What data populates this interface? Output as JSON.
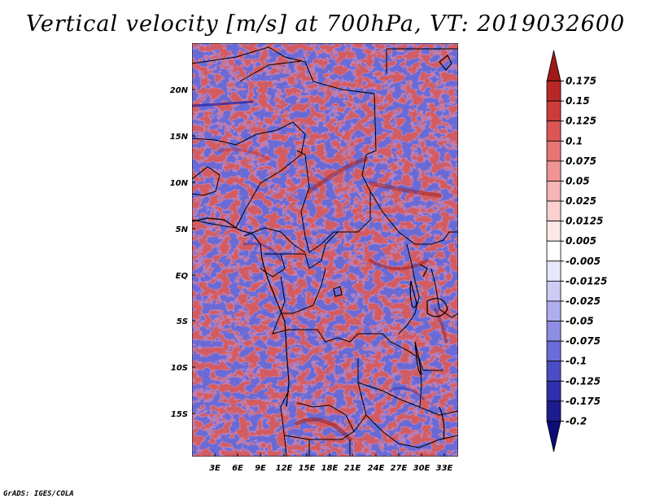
{
  "title": "Vertical velocity [m/s] at 700hPa, VT: 2019032600",
  "footer": "GrADS: IGES/COLA",
  "map": {
    "region": "Central Africa",
    "lat_labels": [
      "20N",
      "15N",
      "10N",
      "5N",
      "EQ",
      "5S",
      "10S",
      "15S"
    ],
    "lon_labels": [
      "3E",
      "6E",
      "9E",
      "12E",
      "15E",
      "18E",
      "21E",
      "24E",
      "27E",
      "30E",
      "33E"
    ]
  },
  "colorbar": {
    "labels": [
      "0.175",
      "0.15",
      "0.125",
      "0.1",
      "0.075",
      "0.05",
      "0.025",
      "0.0125",
      "0.005",
      "-0.005",
      "-0.0125",
      "-0.025",
      "-0.05",
      "-0.075",
      "-0.1",
      "-0.125",
      "-0.175",
      "-0.2"
    ],
    "colors": [
      "#a01818",
      "#b82828",
      "#cc3c3c",
      "#dc5656",
      "#e87474",
      "#f09494",
      "#f6b4b4",
      "#fad0d0",
      "#fde8e8",
      "#ffffff",
      "#e8e8fb",
      "#ccccf4",
      "#aeaeee",
      "#8e8ee4",
      "#6c6cd8",
      "#4c4cc4",
      "#3030ac",
      "#1c1c90",
      "#0c0c78"
    ]
  },
  "colors": {
    "positive": "#d83030",
    "negative": "#3030c0"
  }
}
